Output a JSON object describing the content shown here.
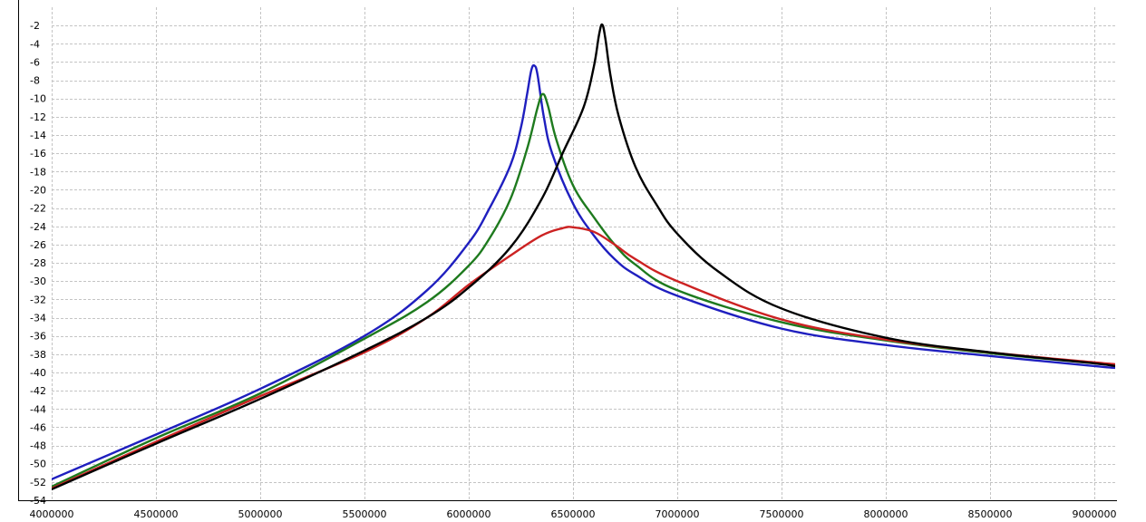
{
  "chart_data": {
    "type": "line",
    "title": "",
    "xlabel": "",
    "ylabel": "",
    "xlim": [
      4000000,
      9100000
    ],
    "ylim": [
      -54,
      0
    ],
    "grid": true,
    "x_ticks": [
      "4000000",
      "4500000",
      "5000000",
      "5500000",
      "6000000",
      "6500000",
      "7000000",
      "7500000",
      "8000000",
      "8500000",
      "9000000"
    ],
    "y_ticks": [
      "-2",
      "-4",
      "-6",
      "-8",
      "-10",
      "-12",
      "-14",
      "-16",
      "-18",
      "-20",
      "-22",
      "-24",
      "-26",
      "-28",
      "-30",
      "-32",
      "-34",
      "-36",
      "-38",
      "-40",
      "-42",
      "-44",
      "-46",
      "-48",
      "-50",
      "-52",
      "-54"
    ],
    "series": [
      {
        "color": "#1f1fbf",
        "points": [
          [
            4000000,
            -51.7
          ],
          [
            4500000,
            -46.8
          ],
          [
            5000000,
            -41.8
          ],
          [
            5500000,
            -36.0
          ],
          [
            5800000,
            -31.0
          ],
          [
            6000000,
            -25.8
          ],
          [
            6100000,
            -22.0
          ],
          [
            6200000,
            -17.3
          ],
          [
            6250000,
            -13.2
          ],
          [
            6280000,
            -9.5
          ],
          [
            6300000,
            -6.9
          ],
          [
            6315000,
            -6.4
          ],
          [
            6330000,
            -7.4
          ],
          [
            6360000,
            -12.0
          ],
          [
            6400000,
            -16.0
          ],
          [
            6500000,
            -21.5
          ],
          [
            6600000,
            -25.0
          ],
          [
            6700000,
            -27.6
          ],
          [
            6800000,
            -29.3
          ],
          [
            7000000,
            -31.6
          ],
          [
            7500000,
            -35.2
          ],
          [
            8000000,
            -37.0
          ],
          [
            8500000,
            -38.2
          ],
          [
            9000000,
            -39.3
          ],
          [
            9100000,
            -39.5
          ]
        ]
      },
      {
        "color": "#1e7a1e",
        "points": [
          [
            4000000,
            -52.5
          ],
          [
            4500000,
            -47.2
          ],
          [
            5000000,
            -42.3
          ],
          [
            5500000,
            -36.3
          ],
          [
            5800000,
            -32.3
          ],
          [
            6000000,
            -28.3
          ],
          [
            6100000,
            -25.3
          ],
          [
            6200000,
            -21.0
          ],
          [
            6280000,
            -15.5
          ],
          [
            6330000,
            -11.0
          ],
          [
            6355000,
            -9.5
          ],
          [
            6380000,
            -10.8
          ],
          [
            6420000,
            -14.5
          ],
          [
            6500000,
            -19.5
          ],
          [
            6600000,
            -23.0
          ],
          [
            6700000,
            -26.0
          ],
          [
            6800000,
            -28.2
          ],
          [
            7000000,
            -31.0
          ],
          [
            7500000,
            -34.5
          ],
          [
            8000000,
            -36.5
          ],
          [
            8500000,
            -37.9
          ],
          [
            9000000,
            -39.0
          ],
          [
            9100000,
            -39.2
          ]
        ]
      },
      {
        "color": "#cc2222",
        "points": [
          [
            4000000,
            -52.7
          ],
          [
            4500000,
            -47.6
          ],
          [
            5000000,
            -42.6
          ],
          [
            5500000,
            -37.8
          ],
          [
            5800000,
            -34.0
          ],
          [
            6000000,
            -30.4
          ],
          [
            6200000,
            -27.2
          ],
          [
            6350000,
            -25.0
          ],
          [
            6450000,
            -24.2
          ],
          [
            6500000,
            -24.1
          ],
          [
            6600000,
            -24.6
          ],
          [
            6700000,
            -26.0
          ],
          [
            6800000,
            -27.6
          ],
          [
            7000000,
            -30.0
          ],
          [
            7500000,
            -34.2
          ],
          [
            8000000,
            -36.4
          ],
          [
            8500000,
            -37.8
          ],
          [
            9000000,
            -38.9
          ],
          [
            9100000,
            -39.1
          ]
        ]
      },
      {
        "color": "#000000",
        "points": [
          [
            4000000,
            -52.8
          ],
          [
            4500000,
            -47.8
          ],
          [
            5000000,
            -42.9
          ],
          [
            5500000,
            -37.6
          ],
          [
            5800000,
            -34.0
          ],
          [
            6000000,
            -30.7
          ],
          [
            6200000,
            -26.3
          ],
          [
            6350000,
            -21.0
          ],
          [
            6450000,
            -16.0
          ],
          [
            6550000,
            -11.0
          ],
          [
            6600000,
            -6.5
          ],
          [
            6625000,
            -3.0
          ],
          [
            6640000,
            -1.9
          ],
          [
            6655000,
            -3.4
          ],
          [
            6680000,
            -7.5
          ],
          [
            6720000,
            -12.0
          ],
          [
            6800000,
            -17.5
          ],
          [
            6900000,
            -21.6
          ],
          [
            7000000,
            -24.8
          ],
          [
            7200000,
            -29.0
          ],
          [
            7500000,
            -33.0
          ],
          [
            8000000,
            -36.2
          ],
          [
            8500000,
            -37.8
          ],
          [
            9000000,
            -39.0
          ],
          [
            9100000,
            -39.3
          ]
        ]
      }
    ]
  }
}
